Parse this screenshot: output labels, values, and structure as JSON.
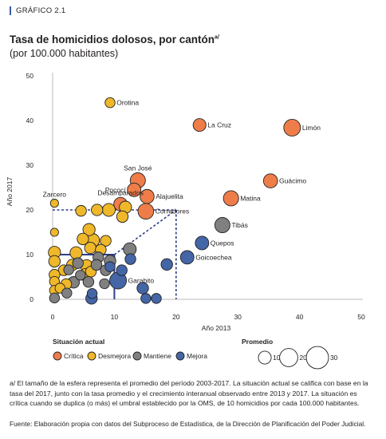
{
  "figure_label": "GRÁFICO 2.1",
  "title": "Tasa de homicidios dolosos, por cantón",
  "title_note_marker": "a/",
  "subtitle": "(por 100.000 habitantes)",
  "note": "a/ El tamaño de la esfera representa el promedio del período 2003-2017. La situación actual se califica con base en la tasa del 2017, junto con la tasa promedio y el crecimiento interanual observado entre 2013 y 2017. La situación es crítica cuando se duplica (o más) el umbral establecido por la OMS, de 10 homicidios por cada 100.000 habitantes.",
  "source": "Fuente: Elaboración propia con datos del Subproceso de Estadística, de la Dirección de Planificación del Poder Judicial.",
  "colors": {
    "critica": "#ee7d4a",
    "desmejora": "#efb82a",
    "mantiene": "#808080",
    "mejora": "#4466a7",
    "threshold": "#2d3e8c",
    "outline": "#222222"
  },
  "chart_data": {
    "type": "scatter",
    "title": "Tasa de homicidios dolosos, por cantón",
    "subtitle": "(por 100.000 habitantes)",
    "xlabel": "Año 2013",
    "ylabel": "Año 2017",
    "xlim": [
      0,
      50
    ],
    "ylim": [
      0,
      50
    ],
    "xticks": [
      0,
      10,
      20,
      30,
      40,
      50
    ],
    "yticks": [
      0,
      10,
      20,
      30,
      40,
      50
    ],
    "grid": false,
    "legend_title": "Situación actual",
    "legend_placement": "bottom-left",
    "legend": [
      {
        "key": "critica",
        "label": "Crítica"
      },
      {
        "key": "desmejora",
        "label": "Desmejora"
      },
      {
        "key": "mantiene",
        "label": "Mantiene"
      },
      {
        "key": "mejora",
        "label": "Mejora"
      }
    ],
    "size_legend_title": "Promedio",
    "size_legend": [
      10,
      20,
      30
    ],
    "reference_lines": [
      {
        "style": "solid",
        "from": [
          0,
          10
        ],
        "to": [
          10,
          10
        ]
      },
      {
        "style": "solid",
        "from": [
          10,
          10
        ],
        "to": [
          10,
          0
        ]
      },
      {
        "style": "dashed",
        "from": [
          0,
          20
        ],
        "to": [
          20,
          20
        ]
      },
      {
        "style": "dashed",
        "from": [
          20,
          20
        ],
        "to": [
          20,
          0
        ]
      },
      {
        "style": "dashed",
        "from": [
          10,
          10
        ],
        "to": [
          20,
          20
        ]
      }
    ],
    "labeled_points": [
      {
        "name": "Orotina",
        "x": 9.3,
        "y": 44,
        "avg": 6,
        "status": "desmejora",
        "label_pos": "right"
      },
      {
        "name": "La Cruz",
        "x": 23.8,
        "y": 39,
        "avg": 10,
        "status": "critica",
        "label_pos": "right"
      },
      {
        "name": "Limón",
        "x": 38.8,
        "y": 38.4,
        "avg": 17,
        "status": "critica",
        "label_pos": "right"
      },
      {
        "name": "Guácimo",
        "x": 35.3,
        "y": 26.5,
        "avg": 12,
        "status": "critica",
        "label_pos": "right"
      },
      {
        "name": "San José",
        "x": 13.8,
        "y": 26.6,
        "avg": 14,
        "status": "critica",
        "label_pos": "above"
      },
      {
        "name": "Pococí",
        "x": 13.2,
        "y": 24.5,
        "avg": 11,
        "status": "critica",
        "label_pos": "left"
      },
      {
        "name": "Alajuelita",
        "x": 15.3,
        "y": 23,
        "avg": 12,
        "status": "critica",
        "label_pos": "right"
      },
      {
        "name": "Matina",
        "x": 28.9,
        "y": 22.6,
        "avg": 14,
        "status": "critica",
        "label_pos": "right"
      },
      {
        "name": "Corredores",
        "x": 15.1,
        "y": 19.7,
        "avg": 15,
        "status": "critica",
        "label_pos": "right"
      },
      {
        "name": "Zarcero",
        "x": 0.3,
        "y": 21.5,
        "avg": 4,
        "status": "desmejora",
        "label_pos": "above"
      },
      {
        "name": "Desamparados",
        "x": 11,
        "y": 21.3,
        "avg": 11,
        "status": "critica",
        "label_pos": "above"
      },
      {
        "name": "Tibás",
        "x": 27.5,
        "y": 16.6,
        "avg": 14,
        "status": "mantiene",
        "label_pos": "right"
      },
      {
        "name": "Quepos",
        "x": 24.2,
        "y": 12.6,
        "avg": 11,
        "status": "mejora",
        "label_pos": "right"
      },
      {
        "name": "Goicoechea",
        "x": 21.8,
        "y": 9.4,
        "avg": 11,
        "status": "mejora",
        "label_pos": "right"
      },
      {
        "name": "Garabito",
        "x": 10.6,
        "y": 4.2,
        "avg": 17,
        "status": "mejora",
        "label_pos": "right"
      }
    ],
    "points": [
      {
        "x": 7.2,
        "y": 20,
        "avg": 8,
        "status": "desmejora"
      },
      {
        "x": 9.1,
        "y": 20,
        "avg": 10,
        "status": "desmejora"
      },
      {
        "x": 11.8,
        "y": 20.6,
        "avg": 9,
        "status": "desmejora"
      },
      {
        "x": 4.6,
        "y": 19.8,
        "avg": 7,
        "status": "desmejora"
      },
      {
        "x": 11.3,
        "y": 18.5,
        "avg": 8,
        "status": "desmejora"
      },
      {
        "x": 0.3,
        "y": 15,
        "avg": 4,
        "status": "desmejora"
      },
      {
        "x": 5.9,
        "y": 15.6,
        "avg": 9,
        "status": "desmejora"
      },
      {
        "x": 4.9,
        "y": 13.5,
        "avg": 8,
        "status": "desmejora"
      },
      {
        "x": 6.5,
        "y": 13.2,
        "avg": 11,
        "status": "desmejora"
      },
      {
        "x": 8.6,
        "y": 13.1,
        "avg": 7,
        "status": "desmejora"
      },
      {
        "x": 6.1,
        "y": 11.5,
        "avg": 8,
        "status": "desmejora"
      },
      {
        "x": 7.8,
        "y": 11.1,
        "avg": 7,
        "status": "desmejora"
      },
      {
        "x": 0.3,
        "y": 10.5,
        "avg": 9,
        "status": "desmejora"
      },
      {
        "x": 3.8,
        "y": 10.4,
        "avg": 9,
        "status": "desmejora"
      },
      {
        "x": 0.3,
        "y": 8.5,
        "avg": 8,
        "status": "desmejora"
      },
      {
        "x": 3.2,
        "y": 7.7,
        "avg": 8,
        "status": "desmejora"
      },
      {
        "x": 5.5,
        "y": 7.5,
        "avg": 9,
        "status": "desmejora"
      },
      {
        "x": 1.8,
        "y": 6.5,
        "avg": 7,
        "status": "desmejora"
      },
      {
        "x": 6.2,
        "y": 6.2,
        "avg": 7,
        "status": "desmejora"
      },
      {
        "x": 0.3,
        "y": 5.5,
        "avg": 7,
        "status": "desmejora"
      },
      {
        "x": 5.3,
        "y": 5.5,
        "avg": 9,
        "status": "desmejora"
      },
      {
        "x": 0.3,
        "y": 4.0,
        "avg": 6,
        "status": "desmejora"
      },
      {
        "x": 2.2,
        "y": 3.4,
        "avg": 7,
        "status": "desmejora"
      },
      {
        "x": 0.3,
        "y": 2.0,
        "avg": 6,
        "status": "desmejora"
      },
      {
        "x": 1.2,
        "y": 2.5,
        "avg": 6,
        "status": "desmejora"
      },
      {
        "x": 12.5,
        "y": 11.2,
        "avg": 10,
        "status": "mantiene"
      },
      {
        "x": 7.4,
        "y": 9.4,
        "avg": 7,
        "status": "mantiene"
      },
      {
        "x": 9.3,
        "y": 8.6,
        "avg": 8,
        "status": "mantiene"
      },
      {
        "x": 4.1,
        "y": 8.1,
        "avg": 7,
        "status": "mantiene"
      },
      {
        "x": 7.1,
        "y": 7.7,
        "avg": 7,
        "status": "mantiene"
      },
      {
        "x": 2.6,
        "y": 6.6,
        "avg": 6,
        "status": "mantiene"
      },
      {
        "x": 8.6,
        "y": 6.5,
        "avg": 7,
        "status": "mantiene"
      },
      {
        "x": 4.5,
        "y": 5.4,
        "avg": 6,
        "status": "mantiene"
      },
      {
        "x": 3.4,
        "y": 3.8,
        "avg": 8,
        "status": "mantiene"
      },
      {
        "x": 5.8,
        "y": 3.9,
        "avg": 7,
        "status": "mantiene"
      },
      {
        "x": 8.4,
        "y": 3.5,
        "avg": 6,
        "status": "mantiene"
      },
      {
        "x": 2.3,
        "y": 1.4,
        "avg": 6,
        "status": "mantiene"
      },
      {
        "x": 0.3,
        "y": 0.3,
        "avg": 6,
        "status": "mantiene"
      },
      {
        "x": 12.6,
        "y": 9.0,
        "avg": 7,
        "status": "mejora"
      },
      {
        "x": 11.2,
        "y": 6.5,
        "avg": 7,
        "status": "mejora"
      },
      {
        "x": 18.5,
        "y": 7.8,
        "avg": 8,
        "status": "mejora"
      },
      {
        "x": 9.3,
        "y": 7.3,
        "avg": 6,
        "status": "mejora"
      },
      {
        "x": 14.6,
        "y": 2.5,
        "avg": 8,
        "status": "mejora"
      },
      {
        "x": 6.4,
        "y": 1.3,
        "avg": 6,
        "status": "mejora"
      },
      {
        "x": 15.1,
        "y": 0.2,
        "avg": 6,
        "status": "mejora"
      },
      {
        "x": 16.8,
        "y": 0.2,
        "avg": 6,
        "status": "mejora"
      },
      {
        "x": 6.3,
        "y": 0.2,
        "avg": 8,
        "status": "mejora"
      }
    ]
  }
}
